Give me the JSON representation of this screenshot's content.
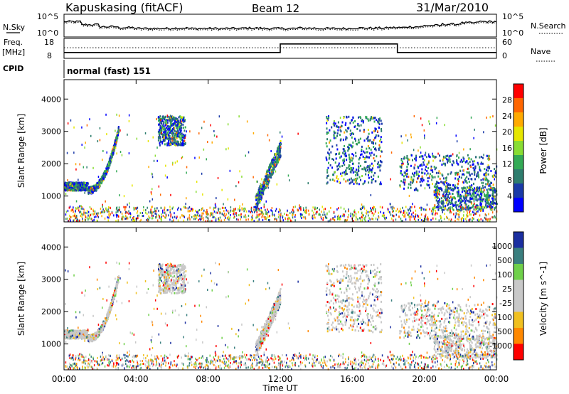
{
  "header": {
    "station": "Kapuskasing (fitACF)",
    "beam": "Beam 12",
    "date": "31/Mar/2010"
  },
  "panel_noise": {
    "left_label": "N.Sky",
    "right_label": "N.Search",
    "left_ticks": [
      "10^5",
      "10^0"
    ],
    "right_ticks": [
      "10^5",
      "10^0"
    ]
  },
  "panel_freq": {
    "left_label_1": "Freq.",
    "left_label_2": "[MHz]",
    "left_ticks": [
      "18",
      "8"
    ],
    "right_label": "Nave",
    "right_ticks": [
      "60",
      "0"
    ]
  },
  "cpid": {
    "label": "CPID",
    "value": "normal (fast) 151"
  },
  "chart_data": [
    {
      "type": "heatmap",
      "title": "",
      "quantity": "Power",
      "ylabel": "Slant Range [km]",
      "xlabel": "Time UT",
      "ylim": [
        200,
        4600
      ],
      "yticks": [
        "4000",
        "3000",
        "2000",
        "1000"
      ],
      "colorbar_label": "Power [dB]",
      "colorbar_ticks": [
        "28",
        "24",
        "20",
        "16",
        "12",
        "8",
        "4"
      ],
      "colors": [
        "#ff0000",
        "#ff6600",
        "#ffaa00",
        "#e6e600",
        "#88dd33",
        "#33aa55",
        "#2e7d6e",
        "#1a3aa8",
        "#0000ff"
      ],
      "features": [
        {
          "t0": 0.0,
          "t1": 1.3,
          "r0": 1200,
          "r1": 1450
        },
        {
          "t0": 1.3,
          "t1": 3.0,
          "r0": 1200,
          "r1": 3100
        },
        {
          "t0": 5.2,
          "t1": 6.7,
          "r0": 2600,
          "r1": 3500
        },
        {
          "t0": 10.6,
          "t1": 12.0,
          "r0": 800,
          "r1": 2700
        },
        {
          "t0": 14.5,
          "t1": 17.6,
          "r0": 1400,
          "r1": 3500
        },
        {
          "t0": 18.6,
          "t1": 24.0,
          "r0": 1200,
          "r1": 2300
        },
        {
          "t0": 20.5,
          "t1": 24.0,
          "r0": 600,
          "r1": 1300
        }
      ]
    },
    {
      "type": "heatmap",
      "title": "",
      "quantity": "Velocity",
      "ylabel": "Slant Range [km]",
      "xlabel": "Time UT",
      "ylim": [
        200,
        4600
      ],
      "yticks": [
        "4000",
        "3000",
        "2000",
        "1000"
      ],
      "colorbar_label": "Velocity [m s^-1]",
      "colorbar_ticks": [
        "1000",
        "500",
        "100",
        "25",
        "-25",
        "-100",
        "-500",
        "-1000"
      ],
      "colors": [
        "#1b2fa0",
        "#3a7f7f",
        "#6fd04a",
        "#c8c8c8",
        "#c8c8c8",
        "#f0c020",
        "#ff8800",
        "#ff0000"
      ],
      "xticks": [
        "00:00",
        "04:00",
        "08:00",
        "12:00",
        "16:00",
        "20:00",
        "00:00"
      ]
    }
  ],
  "noise_series": {
    "note_values_log10": [
      3.6,
      2.9,
      2.4,
      2.2,
      2.0,
      2.0,
      2.1,
      2.0,
      2.0,
      2.0,
      2.1,
      2.0,
      2.0,
      2.1,
      2.0,
      2.0,
      2.1,
      2.1,
      2.2,
      2.4,
      2.7,
      3.0,
      3.3,
      3.6
    ]
  },
  "freq_series": {
    "segments": [
      {
        "t0": 0.0,
        "t1": 12.0,
        "mhz": 10.5
      },
      {
        "t0": 12.0,
        "t1": 18.5,
        "mhz": 16.2
      },
      {
        "t0": 18.5,
        "t1": 24.0,
        "mhz": 10.5
      }
    ],
    "nave_level": 34
  }
}
